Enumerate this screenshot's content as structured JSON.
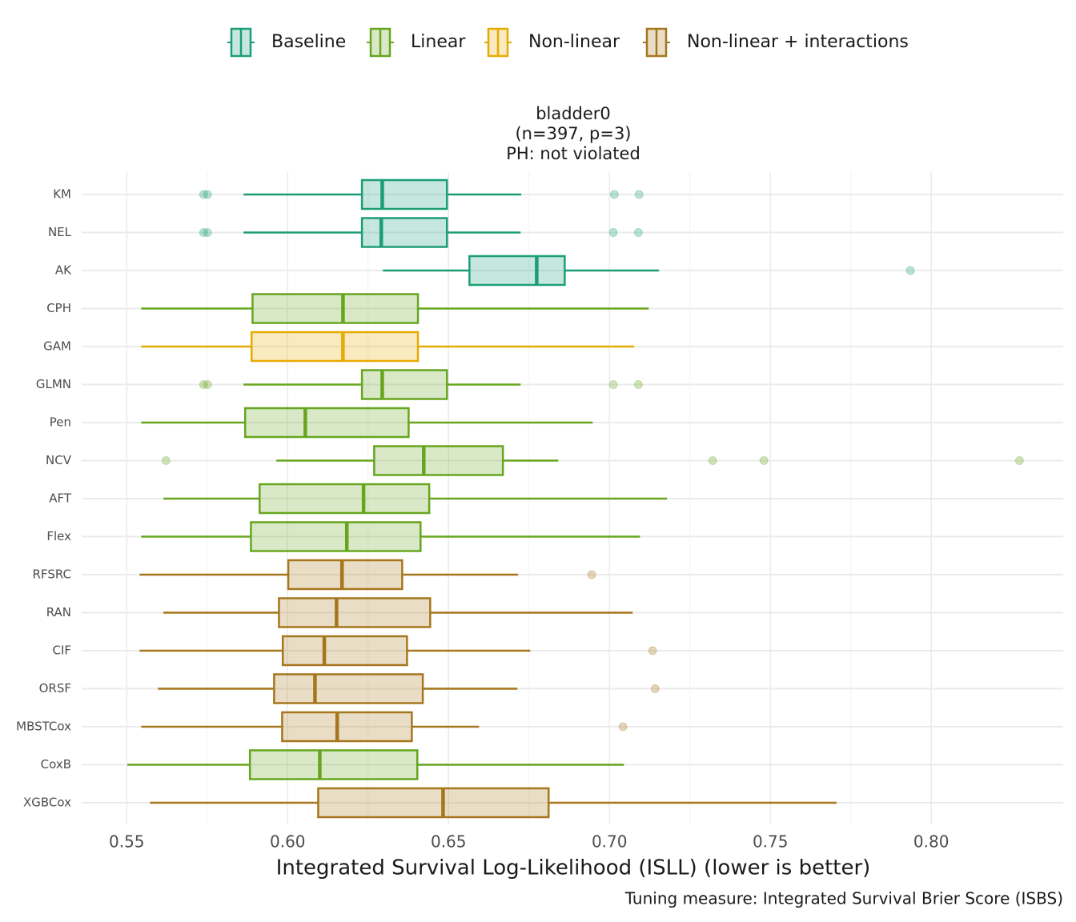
{
  "chart_data": {
    "type": "boxplot",
    "title": [
      "bladder0",
      "(n=397, p=3)",
      "PH: not violated"
    ],
    "xlabel": "Integrated Survival Log-Likelihood (ISLL) (lower is better)",
    "caption": "Tuning measure: Integrated Survival Brier Score (ISBS)",
    "xlim": [
      0.536,
      0.841
    ],
    "xticks": [
      0.55,
      {
        "value": 0.6,
        "label": "0.60"
      },
      0.65,
      {
        "value": 0.7,
        "label": "0.70"
      },
      0.75,
      {
        "value": 0.8,
        "label": "0.80"
      }
    ],
    "grid": true,
    "legend": "top",
    "series": [
      {
        "name": "Baseline",
        "color": "#1b9e77"
      },
      {
        "name": "Linear",
        "color": "#66a61e"
      },
      {
        "name": "Non-linear",
        "color": "#e6ab02"
      },
      {
        "name": "Non-linear + interactions",
        "color": "#a6761d"
      }
    ],
    "boxes": [
      {
        "label": "KM",
        "series": "Baseline",
        "min": 0.5863,
        "q1": 0.6231,
        "median": 0.6294,
        "q3": 0.6495,
        "max": 0.6726,
        "outliers": [
          0.5739,
          0.5751,
          0.7015,
          0.7092
        ]
      },
      {
        "label": "NEL",
        "series": "Baseline",
        "min": 0.5863,
        "q1": 0.6231,
        "median": 0.6291,
        "q3": 0.6495,
        "max": 0.6724,
        "outliers": [
          0.5739,
          0.5751,
          0.7012,
          0.709
        ]
      },
      {
        "label": "AK",
        "series": "Baseline",
        "min": 0.6296,
        "q1": 0.6565,
        "median": 0.6774,
        "q3": 0.6861,
        "max": 0.7154,
        "outliers": [
          0.7935
        ]
      },
      {
        "label": "CPH",
        "series": "Linear",
        "min": 0.5545,
        "q1": 0.5891,
        "median": 0.6172,
        "q3": 0.6405,
        "max": 0.7122,
        "outliers": []
      },
      {
        "label": "GAM",
        "series": "Non-linear",
        "min": 0.5545,
        "q1": 0.5888,
        "median": 0.6172,
        "q3": 0.6405,
        "max": 0.7077,
        "outliers": []
      },
      {
        "label": "GLMN",
        "series": "Linear",
        "min": 0.5863,
        "q1": 0.6231,
        "median": 0.6294,
        "q3": 0.6495,
        "max": 0.6724,
        "outliers": [
          0.5739,
          0.5751,
          0.7012,
          0.709
        ]
      },
      {
        "label": "Pen",
        "series": "Linear",
        "min": 0.5545,
        "q1": 0.5868,
        "median": 0.6055,
        "q3": 0.6376,
        "max": 0.6948,
        "outliers": []
      },
      {
        "label": "NCV",
        "series": "Linear",
        "min": 0.5965,
        "q1": 0.6269,
        "median": 0.6423,
        "q3": 0.6669,
        "max": 0.6841,
        "outliers": [
          0.5622,
          0.7321,
          0.748,
          0.8274
        ]
      },
      {
        "label": "AFT",
        "series": "Linear",
        "min": 0.5614,
        "q1": 0.5913,
        "median": 0.6236,
        "q3": 0.644,
        "max": 0.7179,
        "outliers": []
      },
      {
        "label": "Flex",
        "series": "Linear",
        "min": 0.5545,
        "q1": 0.5886,
        "median": 0.6184,
        "q3": 0.6413,
        "max": 0.7095,
        "outliers": []
      },
      {
        "label": "RFSRC",
        "series": "Non-linear + interactions",
        "min": 0.554,
        "q1": 0.6002,
        "median": 0.6169,
        "q3": 0.6356,
        "max": 0.6716,
        "outliers": [
          0.6945
        ]
      },
      {
        "label": "RAN",
        "series": "Non-linear + interactions",
        "min": 0.5614,
        "q1": 0.5973,
        "median": 0.6152,
        "q3": 0.6443,
        "max": 0.7072,
        "outliers": []
      },
      {
        "label": "CIF",
        "series": "Non-linear + interactions",
        "min": 0.554,
        "q1": 0.5985,
        "median": 0.6114,
        "q3": 0.6371,
        "max": 0.6754,
        "outliers": [
          0.7134
        ]
      },
      {
        "label": "ORSF",
        "series": "Non-linear + interactions",
        "min": 0.5597,
        "q1": 0.5958,
        "median": 0.6085,
        "q3": 0.642,
        "max": 0.6714,
        "outliers": [
          0.7142
        ]
      },
      {
        "label": "MBSTCox",
        "series": "Non-linear + interactions",
        "min": 0.5545,
        "q1": 0.5983,
        "median": 0.6154,
        "q3": 0.6386,
        "max": 0.6595,
        "outliers": [
          0.7042
        ]
      },
      {
        "label": "CoxB",
        "series": "Linear",
        "min": 0.5502,
        "q1": 0.5883,
        "median": 0.61,
        "q3": 0.6403,
        "max": 0.7045,
        "outliers": []
      },
      {
        "label": "XGBCox",
        "series": "Non-linear + interactions",
        "min": 0.5572,
        "q1": 0.6095,
        "median": 0.6483,
        "q3": 0.6811,
        "max": 0.7706,
        "outliers": []
      }
    ]
  }
}
